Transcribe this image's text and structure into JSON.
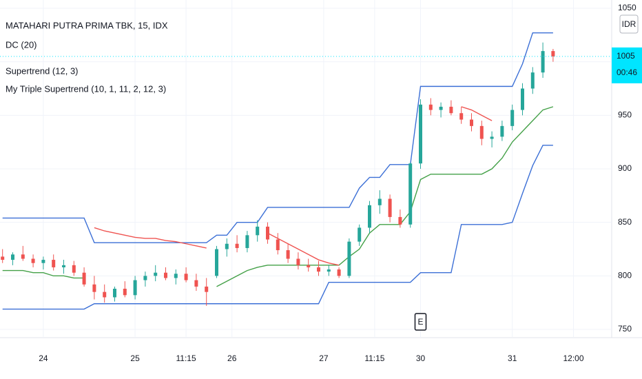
{
  "chart_data": {
    "type": "candlestick",
    "title": "MATAHARI PUTRA PRIMA TBK, 15, IDX",
    "currency": "IDR",
    "x": [
      0,
      2,
      4,
      6,
      8,
      10,
      12,
      14,
      16,
      18,
      20,
      22,
      24,
      26,
      28,
      30,
      32,
      34,
      36,
      38,
      40,
      42,
      44,
      46,
      48,
      50,
      52,
      54,
      56,
      58,
      60,
      62,
      64,
      66,
      68,
      70,
      72,
      74,
      76,
      78,
      80,
      82,
      84,
      86,
      88,
      90,
      92,
      94,
      96,
      98,
      100,
      102,
      104,
      106,
      108
    ],
    "xlim": [
      -0.5,
      119.5
    ],
    "xticks": [
      {
        "value": 8,
        "label": "24"
      },
      {
        "value": 26,
        "label": "25"
      },
      {
        "value": 36,
        "label": "11:15"
      },
      {
        "value": 45,
        "label": "26"
      },
      {
        "value": 63,
        "label": "27"
      },
      {
        "value": 73,
        "label": "11:15"
      },
      {
        "value": 82,
        "label": "30"
      },
      {
        "value": 100,
        "label": "31"
      },
      {
        "value": 112,
        "label": "12:00"
      }
    ],
    "ylim": [
      742.3,
      1057.7
    ],
    "yticks": [
      750,
      800,
      850,
      900,
      950,
      1000,
      1050
    ],
    "grid": true,
    "open": [
      818,
      815,
      820,
      816,
      812,
      815,
      808,
      810,
      803,
      792,
      785,
      780,
      788,
      782,
      796,
      800,
      803,
      798,
      802,
      796,
      790,
      800,
      825,
      830,
      826,
      838,
      846,
      834,
      824,
      816,
      810,
      808,
      804,
      806,
      800,
      832,
      845,
      866,
      872,
      855,
      848,
      905,
      960,
      955,
      958,
      952,
      946,
      940,
      928,
      930,
      940,
      955,
      975,
      990,
      1010
    ],
    "high": [
      825,
      822,
      828,
      820,
      818,
      820,
      815,
      814,
      808,
      800,
      792,
      790,
      795,
      800,
      804,
      810,
      808,
      806,
      808,
      802,
      798,
      828,
      835,
      838,
      842,
      852,
      850,
      840,
      830,
      822,
      816,
      814,
      810,
      808,
      835,
      848,
      870,
      880,
      876,
      862,
      906,
      965,
      966,
      962,
      964,
      958,
      952,
      945,
      935,
      945,
      960,
      980,
      995,
      1018,
      1012
    ],
    "low": [
      812,
      810,
      814,
      808,
      806,
      805,
      802,
      800,
      790,
      778,
      775,
      776,
      780,
      778,
      790,
      795,
      796,
      792,
      794,
      786,
      772,
      798,
      818,
      822,
      822,
      832,
      830,
      820,
      812,
      806,
      804,
      800,
      800,
      798,
      798,
      828,
      840,
      858,
      850,
      845,
      845,
      900,
      950,
      948,
      950,
      942,
      935,
      922,
      920,
      926,
      936,
      950,
      970,
      985,
      1000
    ],
    "close": [
      815,
      820,
      816,
      812,
      815,
      808,
      810,
      803,
      792,
      785,
      780,
      788,
      782,
      796,
      800,
      803,
      798,
      802,
      796,
      790,
      785,
      825,
      830,
      826,
      838,
      846,
      834,
      824,
      816,
      810,
      808,
      804,
      806,
      800,
      832,
      845,
      866,
      872,
      855,
      848,
      905,
      960,
      955,
      958,
      952,
      946,
      940,
      928,
      930,
      940,
      955,
      975,
      990,
      1010,
      1005
    ],
    "up_color": "#26a69a",
    "down_color": "#ef5350",
    "indicators": [
      {
        "name": "DC (20)",
        "color": "#3b6fd6",
        "lines": [
          [
            854,
            854,
            854,
            854,
            854,
            854,
            854,
            854,
            854,
            831,
            831,
            831,
            831,
            831,
            831,
            831,
            831,
            831,
            831,
            831,
            831,
            838,
            838,
            850,
            850,
            850,
            864,
            864,
            864,
            864,
            864,
            864,
            864,
            864,
            864,
            882,
            892,
            892,
            904,
            904,
            904,
            977,
            977,
            977,
            977,
            977,
            977,
            977,
            977,
            977,
            977,
            998,
            1027,
            1027,
            1027
          ],
          [
            769,
            769,
            769,
            769,
            769,
            769,
            769,
            769,
            769,
            774,
            774,
            774,
            774,
            774,
            774,
            774,
            774,
            774,
            774,
            774,
            774,
            774,
            774,
            774,
            774,
            774,
            774,
            774,
            774,
            774,
            774,
            774,
            794,
            794,
            794,
            794,
            794,
            794,
            794,
            794,
            794,
            803,
            803,
            803,
            803,
            848,
            848,
            848,
            848,
            848,
            850,
            877,
            903,
            922,
            922
          ]
        ]
      },
      {
        "name": "Supertrend (12, 3)",
        "color": "#43a047",
        "lines": [
          [
            805,
            805,
            805,
            803,
            803,
            800,
            800,
            798,
            798,
            null,
            null,
            null,
            null,
            null,
            null,
            null,
            null,
            null,
            null,
            null,
            null,
            790,
            795,
            800,
            805,
            808,
            810,
            810,
            810,
            810,
            810,
            810,
            810,
            810,
            818,
            825,
            840,
            848,
            848,
            848,
            860,
            890,
            895,
            895,
            895,
            895,
            895,
            895,
            900,
            910,
            925,
            935,
            945,
            955,
            958
          ]
        ]
      },
      {
        "name": "My Triple Supertrend (10, 1, 11, 2, 12, 3)",
        "color": "#ef5350",
        "lines": [
          [
            null,
            null,
            null,
            null,
            null,
            null,
            null,
            null,
            null,
            845,
            842,
            840,
            838,
            836,
            835,
            835,
            833,
            832,
            830,
            828,
            826,
            null,
            null,
            null,
            null,
            null,
            840,
            835,
            830,
            825,
            820,
            815,
            812,
            810,
            null,
            null,
            null,
            null,
            null,
            null,
            null,
            null,
            null,
            null,
            null,
            958,
            955,
            950,
            945,
            null,
            null,
            null,
            null,
            null,
            null
          ]
        ]
      }
    ],
    "last_price": 1005,
    "countdown": "00:46",
    "last_color": "#00e5ff",
    "event_marker": {
      "x": 82,
      "label": "E"
    }
  }
}
